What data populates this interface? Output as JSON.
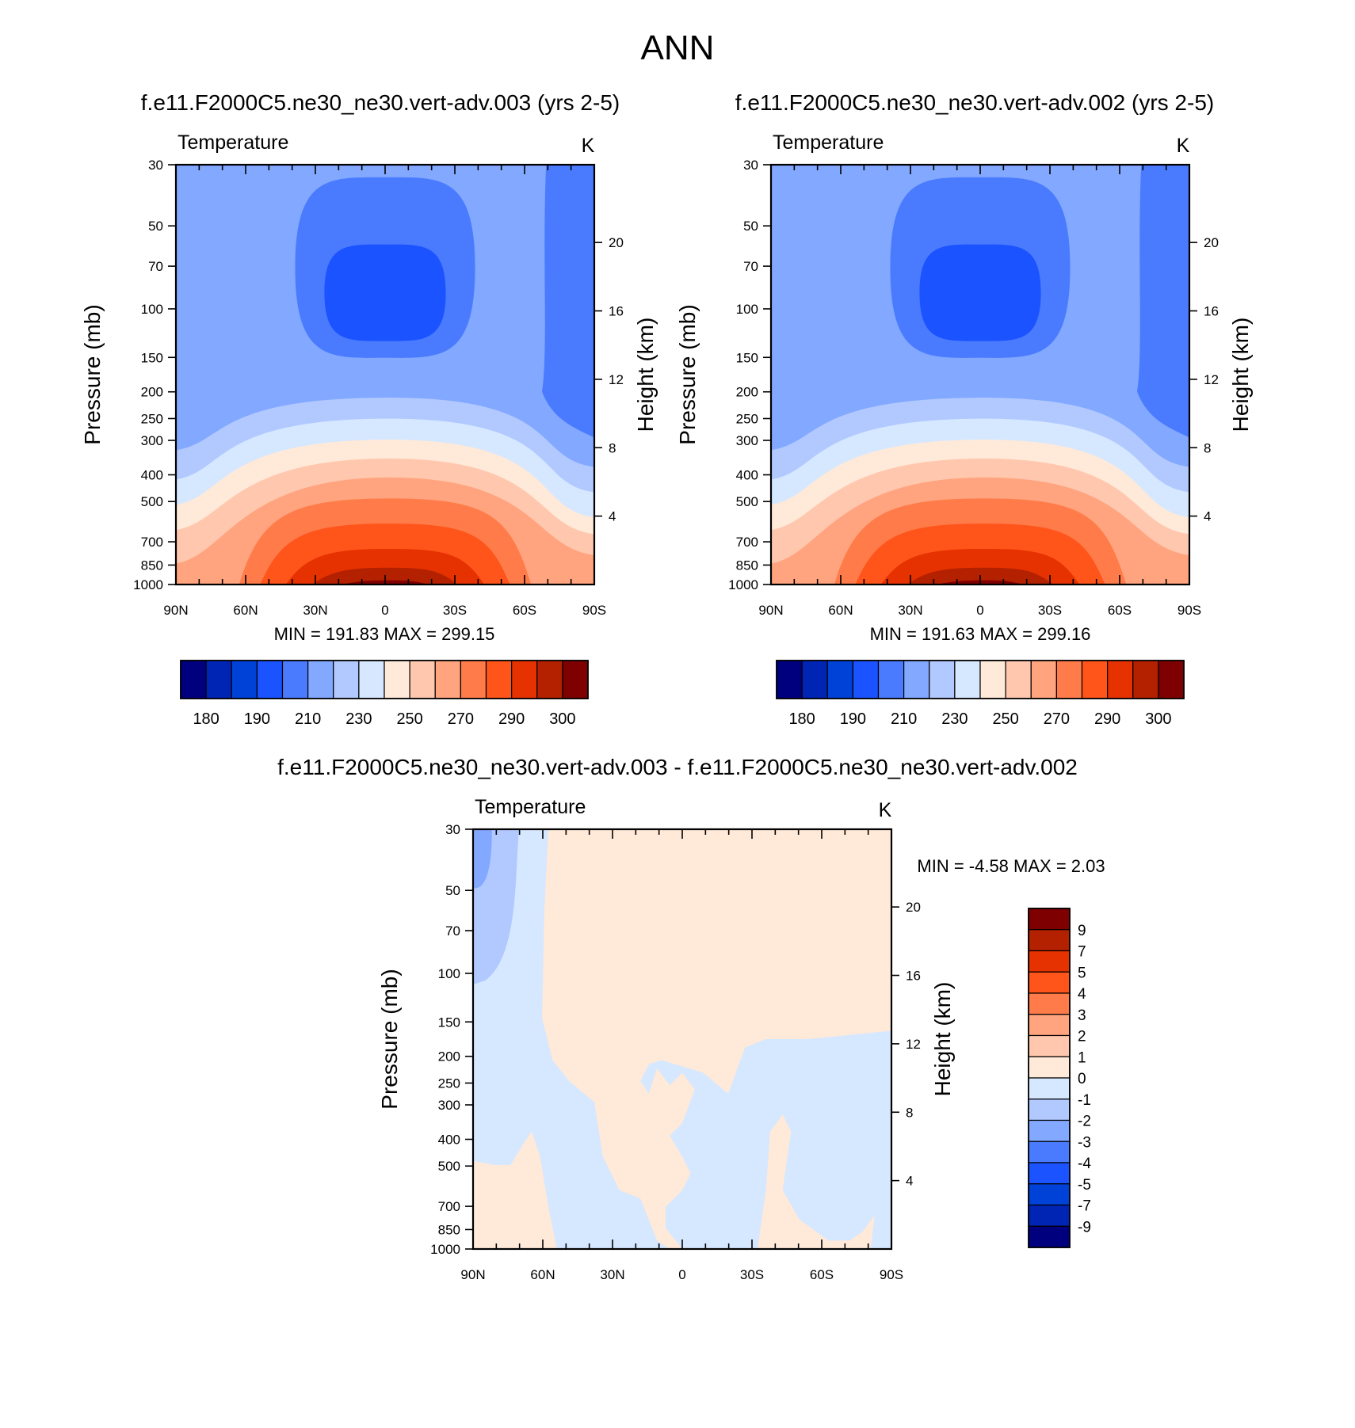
{
  "title": "ANN",
  "colors": {
    "temp_levels": [
      "#00007f",
      "#0025b4",
      "#0042d8",
      "#1a53ff",
      "#4a7bff",
      "#82a8ff",
      "#b2c9ff",
      "#d6e8ff",
      "#ffe9d8",
      "#ffc7ae",
      "#ffa47e",
      "#ff7c4a",
      "#ff541a",
      "#e63200",
      "#b42100",
      "#7f0000"
    ],
    "diff_levels": [
      "#00007f",
      "#0025b4",
      "#0042d8",
      "#1a53ff",
      "#4a7bff",
      "#82a8ff",
      "#b2c9ff",
      "#d6e8ff",
      "#ffe9d8",
      "#ffc7ae",
      "#ffa47e",
      "#ff7c4a",
      "#ff541a",
      "#e63200",
      "#b42100",
      "#7f0000"
    ]
  },
  "chart_data": [
    {
      "type": "heatmap",
      "title": "f.e11.F2000C5.ne30_ne30.vert-adv.003 (yrs 2-5)",
      "variable": "Temperature",
      "units": "K",
      "ylabel": "Pressure (mb)",
      "y2label": "Height (km)",
      "xticks": [
        "90N",
        "60N",
        "30N",
        "0",
        "30S",
        "60S",
        "90S"
      ],
      "yticks": [
        30,
        50,
        70,
        100,
        150,
        200,
        250,
        300,
        400,
        500,
        700,
        850,
        1000
      ],
      "y2ticks": [
        4,
        8,
        12,
        16,
        20
      ],
      "y_scale": "log",
      "ylim": [
        1000,
        30
      ],
      "min": 191.83,
      "max": 299.15,
      "stats": "MIN = 191.83  MAX = 299.15",
      "colorbar_labels": [
        "180",
        "190",
        "210",
        "230",
        "250",
        "270",
        "290",
        "300"
      ]
    },
    {
      "type": "heatmap",
      "title": "f.e11.F2000C5.ne30_ne30.vert-adv.002 (yrs 2-5)",
      "variable": "Temperature",
      "units": "K",
      "ylabel": "Pressure (mb)",
      "y2label": "Height (km)",
      "xticks": [
        "90N",
        "60N",
        "30N",
        "0",
        "30S",
        "60S",
        "90S"
      ],
      "yticks": [
        30,
        50,
        70,
        100,
        150,
        200,
        250,
        300,
        400,
        500,
        700,
        850,
        1000
      ],
      "y2ticks": [
        4,
        8,
        12,
        16,
        20
      ],
      "y_scale": "log",
      "ylim": [
        1000,
        30
      ],
      "min": 191.63,
      "max": 299.16,
      "stats": "MIN = 191.63  MAX = 299.16",
      "colorbar_labels": [
        "180",
        "190",
        "210",
        "230",
        "250",
        "270",
        "290",
        "300"
      ]
    },
    {
      "type": "heatmap",
      "title": "f.e11.F2000C5.ne30_ne30.vert-adv.003 - f.e11.F2000C5.ne30_ne30.vert-adv.002",
      "variable": "Temperature",
      "units": "K",
      "ylabel": "Pressure (mb)",
      "y2label": "Height (km)",
      "xticks": [
        "90N",
        "60N",
        "30N",
        "0",
        "30S",
        "60S",
        "90S"
      ],
      "yticks": [
        30,
        50,
        70,
        100,
        150,
        200,
        250,
        300,
        400,
        500,
        700,
        850,
        1000
      ],
      "y2ticks": [
        4,
        8,
        12,
        16,
        20
      ],
      "y_scale": "log",
      "ylim": [
        1000,
        30
      ],
      "min": -4.58,
      "max": 2.03,
      "stats": "MIN =  -4.58  MAX =   2.03",
      "colorbar_labels": [
        "9",
        "7",
        "5",
        "4",
        "3",
        "2",
        "1",
        "0",
        "-1",
        "-2",
        "-3",
        "-4",
        "-5",
        "-7",
        "-9"
      ]
    }
  ]
}
